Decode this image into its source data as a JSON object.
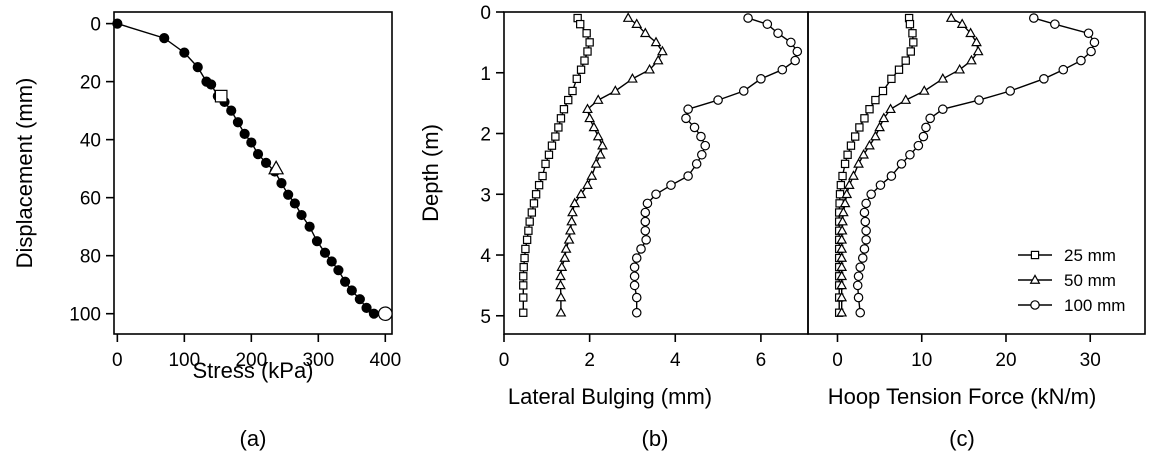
{
  "chart_data": [
    {
      "type": "line",
      "panel_label": "(a)",
      "xlabel": "Stress (kPa)",
      "ylabel": "Displacement (mm)",
      "xlim": [
        -5,
        410
      ],
      "ylim": [
        107,
        -4
      ],
      "xticks": [
        0,
        100,
        200,
        300,
        400
      ],
      "yticks": [
        0,
        20,
        40,
        60,
        80,
        100
      ],
      "series": [
        {
          "marker": "filled-circle",
          "x": [
            0,
            70,
            100,
            120,
            133,
            140,
            150,
            160,
            170,
            180,
            190,
            200,
            210,
            222,
            235,
            245,
            255,
            265,
            275,
            287,
            298,
            310,
            320,
            330,
            340,
            350,
            362,
            372,
            383
          ],
          "y": [
            0,
            5,
            10,
            15,
            20,
            21,
            25,
            27,
            30,
            34,
            38,
            41,
            45,
            48,
            51,
            55,
            59,
            62,
            66,
            70,
            75,
            79,
            82,
            85,
            89,
            92,
            95,
            98,
            100
          ]
        }
      ],
      "highlight_points": [
        {
          "label": "25 mm",
          "marker": "open-square",
          "x": 155,
          "y": 25
        },
        {
          "label": "50 mm",
          "marker": "open-triangle",
          "x": 237,
          "y": 50
        },
        {
          "label": "100 mm",
          "marker": "open-circle",
          "x": 400,
          "y": 100
        }
      ]
    },
    {
      "type": "line",
      "panel_label": "(b)",
      "xlabel": "Lateral Bulging (mm)",
      "ylabel": "Depth (m)",
      "xlim": [
        0,
        7.1
      ],
      "ylim": [
        5.3,
        0
      ],
      "xticks": [
        0,
        2,
        4,
        6
      ],
      "yticks": [
        0,
        1,
        2,
        3,
        4,
        5
      ],
      "series": [
        {
          "name": "25 mm",
          "marker": "open-square",
          "x": [
            1.72,
            1.78,
            1.93,
            2.0,
            1.95,
            1.88,
            1.8,
            1.7,
            1.6,
            1.5,
            1.4,
            1.33,
            1.27,
            1.2,
            1.12,
            1.05,
            0.97,
            0.9,
            0.82,
            0.75,
            0.7,
            0.65,
            0.6,
            0.57,
            0.54,
            0.5,
            0.48,
            0.46,
            0.45,
            0.45,
            0.45,
            0.45
          ],
          "y": [
            0.1,
            0.2,
            0.35,
            0.5,
            0.65,
            0.8,
            0.95,
            1.1,
            1.3,
            1.45,
            1.6,
            1.75,
            1.9,
            2.05,
            2.2,
            2.35,
            2.5,
            2.7,
            2.85,
            3.0,
            3.15,
            3.3,
            3.45,
            3.6,
            3.75,
            3.9,
            4.05,
            4.2,
            4.35,
            4.5,
            4.7,
            4.95
          ]
        },
        {
          "name": "50 mm",
          "marker": "open-triangle",
          "x": [
            2.9,
            3.1,
            3.3,
            3.55,
            3.7,
            3.6,
            3.4,
            3.0,
            2.6,
            2.2,
            1.95,
            2.0,
            2.1,
            2.2,
            2.3,
            2.25,
            2.15,
            2.05,
            1.95,
            1.8,
            1.65,
            1.6,
            1.58,
            1.55,
            1.52,
            1.45,
            1.42,
            1.35,
            1.32,
            1.32,
            1.33,
            1.33
          ],
          "y": [
            0.1,
            0.2,
            0.35,
            0.5,
            0.65,
            0.8,
            0.95,
            1.1,
            1.3,
            1.45,
            1.6,
            1.75,
            1.9,
            2.05,
            2.2,
            2.35,
            2.5,
            2.7,
            2.85,
            3.0,
            3.15,
            3.3,
            3.45,
            3.6,
            3.75,
            3.9,
            4.05,
            4.2,
            4.35,
            4.5,
            4.7,
            4.95
          ]
        },
        {
          "name": "100 mm",
          "marker": "open-circle",
          "x": [
            5.7,
            6.15,
            6.4,
            6.7,
            6.85,
            6.8,
            6.5,
            6.0,
            5.6,
            5.0,
            4.3,
            4.25,
            4.45,
            4.6,
            4.7,
            4.62,
            4.5,
            4.3,
            3.9,
            3.55,
            3.35,
            3.3,
            3.3,
            3.3,
            3.32,
            3.2,
            3.1,
            3.05,
            3.05,
            3.05,
            3.1,
            3.1
          ],
          "y": [
            0.1,
            0.2,
            0.35,
            0.5,
            0.65,
            0.8,
            0.95,
            1.1,
            1.3,
            1.45,
            1.6,
            1.75,
            1.9,
            2.05,
            2.2,
            2.35,
            2.5,
            2.7,
            2.85,
            3.0,
            3.15,
            3.3,
            3.45,
            3.6,
            3.75,
            3.9,
            4.05,
            4.2,
            4.35,
            4.5,
            4.7,
            4.95
          ]
        }
      ]
    },
    {
      "type": "line",
      "panel_label": "(c)",
      "xlabel": "Hoop Tension Force (kN/m)",
      "ylabel": "",
      "xlim": [
        -3.5,
        36.5
      ],
      "ylim": [
        5.3,
        0
      ],
      "xticks": [
        0,
        10,
        20,
        30
      ],
      "legend": {
        "position": "lower-right",
        "entries": [
          "25 mm",
          "50 mm",
          "100 mm"
        ]
      },
      "series": [
        {
          "name": "25 mm",
          "marker": "open-square",
          "x": [
            8.5,
            8.6,
            8.9,
            9.0,
            8.7,
            8.1,
            7.3,
            6.4,
            5.4,
            4.5,
            3.8,
            3.2,
            2.6,
            2.1,
            1.6,
            1.2,
            0.9,
            0.6,
            0.4,
            0.3,
            0.25,
            0.2,
            0.2,
            0.2,
            0.2,
            0.2,
            0.2,
            0.2,
            0.2,
            0.2,
            0.2,
            0.2
          ],
          "y": [
            0.1,
            0.2,
            0.35,
            0.5,
            0.65,
            0.8,
            0.95,
            1.1,
            1.3,
            1.45,
            1.6,
            1.75,
            1.9,
            2.05,
            2.2,
            2.35,
            2.5,
            2.7,
            2.85,
            3.0,
            3.15,
            3.3,
            3.45,
            3.6,
            3.75,
            3.9,
            4.05,
            4.2,
            4.35,
            4.5,
            4.7,
            4.95
          ]
        },
        {
          "name": "50 mm",
          "marker": "open-triangle",
          "x": [
            13.5,
            14.8,
            15.8,
            16.5,
            16.7,
            15.9,
            14.5,
            12.5,
            10.3,
            8.1,
            6.3,
            5.5,
            5.0,
            4.5,
            3.8,
            3.1,
            2.5,
            1.9,
            1.4,
            1.1,
            0.9,
            0.7,
            0.6,
            0.55,
            0.5,
            0.5,
            0.5,
            0.5,
            0.5,
            0.5,
            0.5,
            0.5
          ],
          "y": [
            0.1,
            0.2,
            0.35,
            0.5,
            0.65,
            0.8,
            0.95,
            1.1,
            1.3,
            1.45,
            1.6,
            1.75,
            1.9,
            2.05,
            2.2,
            2.35,
            2.5,
            2.7,
            2.85,
            3.0,
            3.15,
            3.3,
            3.45,
            3.6,
            3.75,
            3.9,
            4.05,
            4.2,
            4.35,
            4.5,
            4.7,
            4.95
          ]
        },
        {
          "name": "100 mm",
          "marker": "open-circle",
          "x": [
            23.3,
            25.8,
            29.8,
            30.5,
            30.1,
            28.9,
            26.8,
            24.5,
            20.5,
            16.8,
            12.5,
            11.0,
            10.5,
            10.2,
            9.6,
            8.6,
            7.6,
            6.4,
            5.1,
            4.0,
            3.4,
            3.2,
            3.3,
            3.4,
            3.4,
            3.2,
            3.0,
            2.7,
            2.5,
            2.4,
            2.5,
            2.7
          ],
          "y": [
            0.1,
            0.2,
            0.35,
            0.5,
            0.65,
            0.8,
            0.95,
            1.1,
            1.3,
            1.45,
            1.6,
            1.75,
            1.9,
            2.05,
            2.2,
            2.35,
            2.5,
            2.7,
            2.85,
            3.0,
            3.15,
            3.3,
            3.45,
            3.6,
            3.75,
            3.9,
            4.05,
            4.2,
            4.35,
            4.5,
            4.7,
            4.95
          ]
        }
      ]
    }
  ]
}
